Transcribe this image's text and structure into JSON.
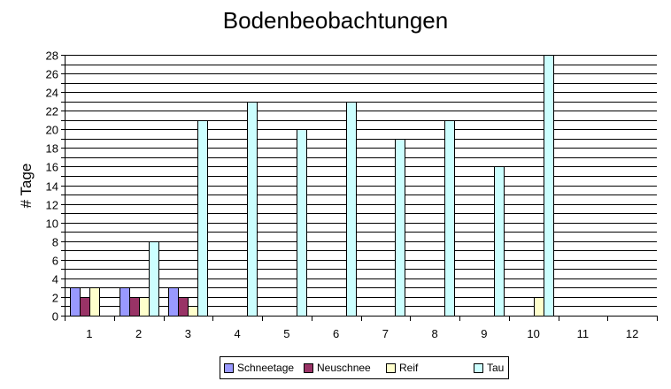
{
  "chart_data": {
    "type": "bar",
    "title": "Bodenbeobachtungen",
    "xlabel": "",
    "ylabel": "# Tage",
    "ylim": [
      0,
      28
    ],
    "ytick_step": 2,
    "grid": true,
    "legend_position": "bottom",
    "categories": [
      "1",
      "2",
      "3",
      "4",
      "5",
      "6",
      "7",
      "8",
      "9",
      "10",
      "11",
      "12"
    ],
    "series": [
      {
        "name": "Schneetage",
        "color": "#9999ff",
        "values": [
          3,
          3,
          3,
          0,
          0,
          0,
          0,
          0,
          0,
          0,
          0,
          0
        ]
      },
      {
        "name": "Neuschnee",
        "color": "#993366",
        "values": [
          2,
          2,
          2,
          0,
          0,
          0,
          0,
          0,
          0,
          0,
          0,
          0
        ]
      },
      {
        "name": "Reif",
        "color": "#ffffcc",
        "values": [
          3,
          2,
          1,
          0,
          0,
          0,
          0,
          0,
          0,
          2,
          0,
          0
        ]
      },
      {
        "name": "Tau",
        "color": "#ccffff",
        "values": [
          0,
          8,
          21,
          23,
          20,
          23,
          19,
          21,
          16,
          28,
          0,
          0
        ]
      }
    ]
  }
}
